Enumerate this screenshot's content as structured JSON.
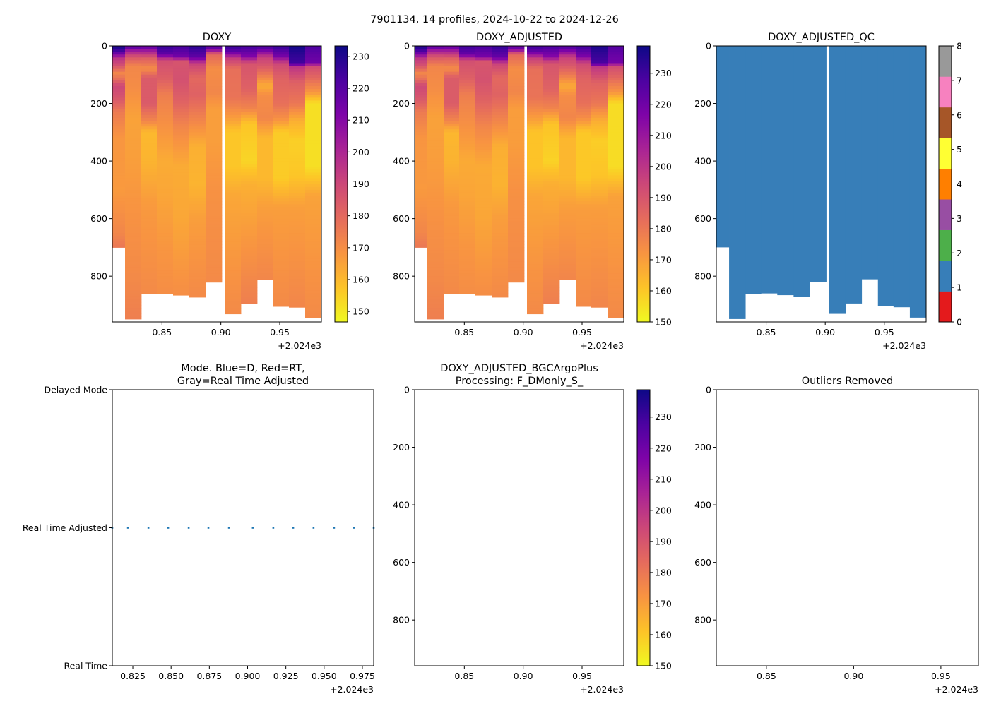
{
  "figure": {
    "suptitle": "7901134, 14 profiles, 2024-10-22 to 2024-12-26"
  },
  "profile_data": {
    "x_edges": [
      0.8078,
      0.8186,
      0.8324,
      0.8456,
      0.8594,
      0.8732,
      0.887,
      0.9008,
      0.9032,
      0.917,
      0.9308,
      0.9446,
      0.9578,
      0.9716,
      0.9854
    ],
    "max_depth": [
      700,
      949,
      861,
      860,
      866,
      873,
      821,
      null,
      931,
      895,
      811,
      905,
      908,
      944
    ],
    "qc_value": 1,
    "doxy_keypoints": [
      [
        [
          0,
          232
        ],
        [
          20,
          222
        ],
        [
          45,
          195
        ],
        [
          70,
          186
        ],
        [
          95,
          172
        ],
        [
          115,
          178
        ],
        [
          140,
          190
        ],
        [
          180,
          186
        ],
        [
          230,
          175
        ],
        [
          320,
          168
        ],
        [
          500,
          167
        ],
        [
          650,
          172
        ],
        [
          700,
          176
        ]
      ],
      [
        [
          0,
          222
        ],
        [
          15,
          205
        ],
        [
          40,
          185
        ],
        [
          70,
          172
        ],
        [
          150,
          170
        ],
        [
          250,
          165
        ],
        [
          400,
          166
        ],
        [
          600,
          169
        ],
        [
          800,
          171
        ],
        [
          949,
          174
        ]
      ],
      [
        [
          0,
          220
        ],
        [
          15,
          205
        ],
        [
          45,
          182
        ],
        [
          80,
          170
        ],
        [
          110,
          184
        ],
        [
          200,
          184
        ],
        [
          260,
          172
        ],
        [
          300,
          160
        ],
        [
          400,
          161
        ],
        [
          550,
          167
        ],
        [
          861,
          171
        ]
      ],
      [
        [
          0,
          226
        ],
        [
          30,
          218
        ],
        [
          50,
          188
        ],
        [
          120,
          182
        ],
        [
          170,
          174
        ],
        [
          300,
          168
        ],
        [
          400,
          163
        ],
        [
          500,
          164
        ],
        [
          700,
          168
        ],
        [
          860,
          170
        ]
      ],
      [
        [
          0,
          224
        ],
        [
          35,
          215
        ],
        [
          55,
          186
        ],
        [
          120,
          187
        ],
        [
          190,
          182
        ],
        [
          280,
          172
        ],
        [
          420,
          163
        ],
        [
          600,
          164
        ],
        [
          866,
          170
        ]
      ],
      [
        [
          0,
          228
        ],
        [
          40,
          218
        ],
        [
          60,
          192
        ],
        [
          110,
          180
        ],
        [
          170,
          182
        ],
        [
          260,
          172
        ],
        [
          350,
          162
        ],
        [
          480,
          161
        ],
        [
          600,
          166
        ],
        [
          873,
          171
        ]
      ],
      [
        [
          0,
          222
        ],
        [
          12,
          210
        ],
        [
          30,
          180
        ],
        [
          80,
          170
        ],
        [
          160,
          172
        ],
        [
          220,
          166
        ],
        [
          330,
          166
        ],
        [
          500,
          169
        ],
        [
          821,
          171
        ]
      ],
      [],
      [
        [
          0,
          226
        ],
        [
          20,
          218
        ],
        [
          45,
          192
        ],
        [
          80,
          178
        ],
        [
          180,
          177
        ],
        [
          240,
          168
        ],
        [
          300,
          157
        ],
        [
          420,
          157
        ],
        [
          520,
          164
        ],
        [
          931,
          171
        ]
      ],
      [
        [
          0,
          224
        ],
        [
          35,
          212
        ],
        [
          60,
          186
        ],
        [
          150,
          182
        ],
        [
          220,
          172
        ],
        [
          270,
          157
        ],
        [
          400,
          154
        ],
        [
          480,
          162
        ],
        [
          895,
          174
        ]
      ],
      [
        [
          0,
          224
        ],
        [
          20,
          210
        ],
        [
          40,
          192
        ],
        [
          80,
          182
        ],
        [
          110,
          172
        ],
        [
          140,
          163
        ],
        [
          170,
          170
        ],
        [
          250,
          172
        ],
        [
          320,
          160
        ],
        [
          460,
          160
        ],
        [
          560,
          166
        ],
        [
          811,
          172
        ]
      ],
      [
        [
          0,
          226
        ],
        [
          35,
          214
        ],
        [
          60,
          190
        ],
        [
          110,
          182
        ],
        [
          200,
          178
        ],
        [
          250,
          170
        ],
        [
          300,
          156
        ],
        [
          460,
          156
        ],
        [
          560,
          166
        ],
        [
          905,
          171
        ]
      ],
      [
        [
          0,
          232
        ],
        [
          60,
          224
        ],
        [
          75,
          195
        ],
        [
          130,
          182
        ],
        [
          200,
          176
        ],
        [
          260,
          162
        ],
        [
          330,
          155
        ],
        [
          450,
          157
        ],
        [
          560,
          166
        ],
        [
          908,
          172
        ]
      ],
      [
        [
          0,
          222
        ],
        [
          55,
          215
        ],
        [
          75,
          188
        ],
        [
          120,
          178
        ],
        [
          160,
          168
        ],
        [
          200,
          152
        ],
        [
          300,
          152
        ],
        [
          420,
          152
        ],
        [
          520,
          165
        ],
        [
          944,
          171
        ]
      ]
    ],
    "adjusted_offset": 4
  },
  "chart_data": [
    {
      "id": "doxy",
      "type": "heatmap",
      "title": "DOXY",
      "variable": "doxy",
      "xlim": [
        0.8078,
        0.9854
      ],
      "ylim": [
        0,
        959
      ],
      "xticks": [
        0.85,
        0.9,
        0.95
      ],
      "xtick_labels": [
        "0.85",
        "0.90",
        "0.95"
      ],
      "x_offset_label": "+2.024e3",
      "yticks": [
        0,
        200,
        400,
        600,
        800
      ],
      "ytick_labels": [
        "0",
        "200",
        "400",
        "600",
        "800"
      ],
      "colorbar": {
        "colormap": "plasma_r",
        "range": [
          146.7,
          233.3
        ],
        "ticks": [
          150,
          160,
          170,
          180,
          190,
          200,
          210,
          220,
          230
        ],
        "tick_labels": [
          "150",
          "160",
          "170",
          "180",
          "190",
          "200",
          "210",
          "220",
          "230"
        ]
      }
    },
    {
      "id": "doxy_adjusted",
      "type": "heatmap",
      "title": "DOXY_ADJUSTED",
      "variable": "doxy_adjusted",
      "xlim": [
        0.8078,
        0.9854
      ],
      "ylim": [
        0,
        959
      ],
      "xticks": [
        0.85,
        0.9,
        0.95
      ],
      "xtick_labels": [
        "0.85",
        "0.90",
        "0.95"
      ],
      "x_offset_label": "+2.024e3",
      "yticks": [
        0,
        200,
        400,
        600,
        800
      ],
      "ytick_labels": [
        "0",
        "200",
        "400",
        "600",
        "800"
      ],
      "colorbar": {
        "colormap": "plasma_r",
        "range": [
          150,
          238.8
        ],
        "ticks": [
          150,
          160,
          170,
          180,
          190,
          200,
          210,
          220,
          230
        ],
        "tick_labels": [
          "150",
          "160",
          "170",
          "180",
          "190",
          "200",
          "210",
          "220",
          "230"
        ]
      }
    },
    {
      "id": "doxy_adjusted_qc",
      "type": "heatmap",
      "title": "DOXY_ADJUSTED_QC",
      "variable": "qc",
      "xlim": [
        0.8078,
        0.9854
      ],
      "ylim": [
        0,
        959
      ],
      "xticks": [
        0.85,
        0.9,
        0.95
      ],
      "xtick_labels": [
        "0.85",
        "0.90",
        "0.95"
      ],
      "x_offset_label": "+2.024e3",
      "yticks": [
        0,
        200,
        400,
        600,
        800
      ],
      "ytick_labels": [
        "0",
        "200",
        "400",
        "600",
        "800"
      ],
      "colorbar": {
        "colormap": "Set1",
        "range": [
          0,
          8
        ],
        "ticks": [
          0,
          1,
          2,
          3,
          4,
          5,
          6,
          7,
          8
        ],
        "tick_labels": [
          "0",
          "1",
          "2",
          "3",
          "4",
          "5",
          "6",
          "7",
          "8"
        ],
        "bins": [
          "#e41a1c",
          "#377eb8",
          "#4daf4a",
          "#984ea3",
          "#ff7f00",
          "#ffff33",
          "#a65628",
          "#f781bf",
          "#999999"
        ]
      }
    },
    {
      "id": "mode",
      "type": "scatter",
      "title": "Mode. Blue=D, Red=RT,",
      "title_line2": "Gray=Real Time Adjusted",
      "xlim": [
        0.8116,
        0.9824
      ],
      "ylim": [
        2,
        0
      ],
      "x": [
        0.8116,
        0.8218,
        0.8352,
        0.8481,
        0.8615,
        0.8744,
        0.8878,
        0.9034,
        0.9168,
        0.9298,
        0.9431,
        0.9565,
        0.9694,
        0.9824
      ],
      "y": [
        1,
        1,
        1,
        1,
        1,
        1,
        1,
        1,
        1,
        1,
        1,
        1,
        1,
        1
      ],
      "color": "#1f77b4",
      "xticks": [
        0.825,
        0.85,
        0.875,
        0.9,
        0.925,
        0.95,
        0.975
      ],
      "xtick_labels": [
        "0.825",
        "0.850",
        "0.875",
        "0.900",
        "0.925",
        "0.950",
        "0.975"
      ],
      "x_offset_label": "+2.024e3",
      "yticks": [
        2,
        1,
        0
      ],
      "ytick_labels": [
        "Delayed Mode",
        "Real Time Adjusted",
        "Real Time"
      ]
    },
    {
      "id": "bgc",
      "type": "heatmap",
      "title": "DOXY_ADJUSTED_BGCArgoPlus",
      "title_line2": "Processing: F_DMonly_S_",
      "variable": null,
      "xlim": [
        0.8078,
        0.9854
      ],
      "ylim": [
        0,
        959
      ],
      "xticks": [
        0.85,
        0.9,
        0.95
      ],
      "xtick_labels": [
        "0.85",
        "0.90",
        "0.95"
      ],
      "x_offset_label": "+2.024e3",
      "yticks": [
        0,
        200,
        400,
        600,
        800
      ],
      "ytick_labels": [
        "0",
        "200",
        "400",
        "600",
        "800"
      ],
      "colorbar": {
        "colormap": "plasma_r",
        "range": [
          150,
          238.8
        ],
        "ticks": [
          150,
          160,
          170,
          180,
          190,
          200,
          210,
          220,
          230
        ],
        "tick_labels": [
          "150",
          "160",
          "170",
          "180",
          "190",
          "200",
          "210",
          "220",
          "230"
        ]
      }
    },
    {
      "id": "outliers",
      "type": "heatmap",
      "title": "Outliers Removed",
      "variable": null,
      "xlim": [
        0.8213,
        0.9715
      ],
      "ylim": [
        0,
        959
      ],
      "xticks": [
        0.85,
        0.9,
        0.95
      ],
      "xtick_labels": [
        "0.85",
        "0.90",
        "0.95"
      ],
      "x_offset_label": "+2.024e3",
      "yticks": [
        0,
        200,
        400,
        600,
        800
      ],
      "ytick_labels": [
        "0",
        "200",
        "400",
        "600",
        "800"
      ]
    }
  ]
}
